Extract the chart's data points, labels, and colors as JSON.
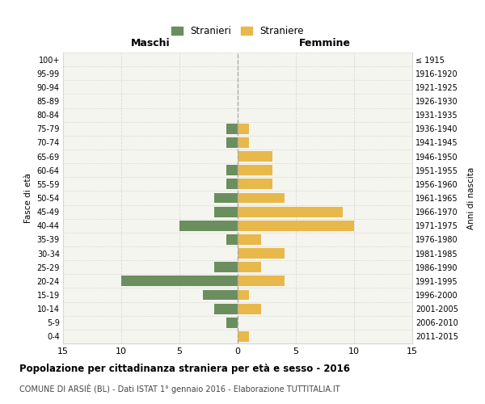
{
  "age_groups": [
    "100+",
    "95-99",
    "90-94",
    "85-89",
    "80-84",
    "75-79",
    "70-74",
    "65-69",
    "60-64",
    "55-59",
    "50-54",
    "45-49",
    "40-44",
    "35-39",
    "30-34",
    "25-29",
    "20-24",
    "15-19",
    "10-14",
    "5-9",
    "0-4"
  ],
  "birth_years": [
    "≤ 1915",
    "1916-1920",
    "1921-1925",
    "1926-1930",
    "1931-1935",
    "1936-1940",
    "1941-1945",
    "1946-1950",
    "1951-1955",
    "1956-1960",
    "1961-1965",
    "1966-1970",
    "1971-1975",
    "1976-1980",
    "1981-1985",
    "1986-1990",
    "1991-1995",
    "1996-2000",
    "2001-2005",
    "2006-2010",
    "2011-2015"
  ],
  "males": [
    0,
    0,
    0,
    0,
    0,
    1,
    1,
    0,
    1,
    1,
    2,
    2,
    5,
    1,
    0,
    2,
    10,
    3,
    2,
    1,
    0
  ],
  "females": [
    0,
    0,
    0,
    0,
    0,
    1,
    1,
    3,
    3,
    3,
    4,
    9,
    10,
    2,
    4,
    2,
    4,
    1,
    2,
    0,
    1
  ],
  "male_color": "#6b8e5e",
  "female_color": "#e8b84b",
  "grid_color": "#d8d8d8",
  "center_line_color": "#aaaaaa",
  "background_color": "#ffffff",
  "plot_bg_color": "#f5f5f0",
  "title": "Popolazione per cittadinanza straniera per età e sesso - 2016",
  "subtitle": "COMUNE DI ARSIÈ (BL) - Dati ISTAT 1° gennaio 2016 - Elaborazione TUTTITALIA.IT",
  "left_label": "Maschi",
  "right_label": "Femmine",
  "y_axis_label": "Fasce di età",
  "right_axis_label": "Anni di nascita",
  "legend_male": "Stranieri",
  "legend_female": "Straniere",
  "xlim": 15,
  "bar_height": 0.75
}
